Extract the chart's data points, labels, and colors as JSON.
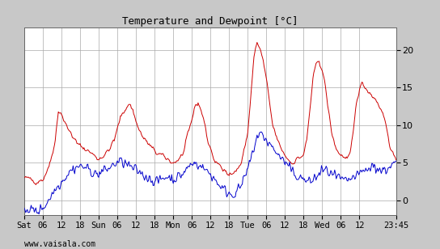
{
  "title": "Temperature and Dewpoint [°C]",
  "xlabel_bottom": "www.vaisala.com",
  "background_color": "#c8c8c8",
  "plot_background": "#ffffff",
  "grid_color": "#aaaaaa",
  "temp_color": "#cc0000",
  "dewp_color": "#0000cc",
  "ylim": [
    -2.0,
    23
  ],
  "yticks": [
    0,
    5,
    10,
    15,
    20
  ],
  "x_tick_labels": [
    "Sat",
    "06",
    "12",
    "18",
    "Sun",
    "06",
    "12",
    "18",
    "Mon",
    "06",
    "12",
    "18",
    "Tue",
    "06",
    "12",
    "18",
    "Wed",
    "06",
    "12",
    "23:45"
  ],
  "x_tick_positions": [
    0,
    6,
    12,
    18,
    24,
    30,
    36,
    42,
    48,
    54,
    60,
    66,
    72,
    78,
    84,
    90,
    96,
    102,
    108,
    119.75
  ],
  "total_hours": 119.75,
  "temp_keypoints": [
    [
      0,
      3.0
    ],
    [
      2,
      2.8
    ],
    [
      4,
      2.5
    ],
    [
      6,
      2.8
    ],
    [
      8,
      4.5
    ],
    [
      10,
      8.0
    ],
    [
      11,
      12.0
    ],
    [
      12,
      11.5
    ],
    [
      13,
      10.5
    ],
    [
      14,
      9.5
    ],
    [
      15,
      9.0
    ],
    [
      17,
      7.5
    ],
    [
      19,
      7.0
    ],
    [
      21,
      6.5
    ],
    [
      23,
      5.8
    ],
    [
      24,
      5.5
    ],
    [
      25,
      5.8
    ],
    [
      27,
      6.5
    ],
    [
      29,
      8.0
    ],
    [
      31,
      11.0
    ],
    [
      33,
      12.5
    ],
    [
      34,
      12.8
    ],
    [
      35,
      12.0
    ],
    [
      36,
      10.5
    ],
    [
      38,
      8.5
    ],
    [
      40,
      7.5
    ],
    [
      42,
      6.5
    ],
    [
      44,
      6.0
    ],
    [
      46,
      5.5
    ],
    [
      48,
      5.0
    ],
    [
      49,
      5.2
    ],
    [
      51,
      6.0
    ],
    [
      53,
      9.0
    ],
    [
      55,
      12.5
    ],
    [
      56,
      13.0
    ],
    [
      57,
      12.0
    ],
    [
      58,
      10.5
    ],
    [
      59,
      8.0
    ],
    [
      60,
      7.0
    ],
    [
      61,
      5.5
    ],
    [
      62,
      5.0
    ],
    [
      63,
      4.5
    ],
    [
      64,
      4.0
    ],
    [
      66,
      3.8
    ],
    [
      67,
      3.5
    ],
    [
      68,
      3.8
    ],
    [
      70,
      5.0
    ],
    [
      72,
      9.0
    ],
    [
      73,
      14.0
    ],
    [
      74,
      19.0
    ],
    [
      75,
      21.0
    ],
    [
      76,
      20.0
    ],
    [
      77,
      18.5
    ],
    [
      78,
      16.0
    ],
    [
      79,
      13.0
    ],
    [
      80,
      10.0
    ],
    [
      82,
      7.5
    ],
    [
      84,
      6.0
    ],
    [
      85,
      5.5
    ],
    [
      86,
      5.0
    ],
    [
      87,
      5.2
    ],
    [
      88,
      5.5
    ],
    [
      89,
      5.8
    ],
    [
      90,
      6.0
    ],
    [
      91,
      8.0
    ],
    [
      92,
      12.0
    ],
    [
      93,
      16.0
    ],
    [
      94,
      18.0
    ],
    [
      95,
      18.5
    ],
    [
      96,
      17.5
    ],
    [
      97,
      15.0
    ],
    [
      98,
      12.0
    ],
    [
      99,
      9.0
    ],
    [
      100,
      7.5
    ],
    [
      101,
      6.5
    ],
    [
      102,
      6.0
    ],
    [
      103,
      5.8
    ],
    [
      104,
      5.5
    ],
    [
      105,
      6.0
    ],
    [
      106,
      9.0
    ],
    [
      107,
      13.0
    ],
    [
      108,
      15.0
    ],
    [
      109,
      15.5
    ],
    [
      110,
      15.0
    ],
    [
      111,
      14.5
    ],
    [
      112,
      14.0
    ],
    [
      113,
      13.5
    ],
    [
      114,
      13.0
    ],
    [
      115,
      12.0
    ],
    [
      116,
      11.0
    ],
    [
      117,
      9.0
    ],
    [
      118,
      7.0
    ],
    [
      119.75,
      5.0
    ]
  ],
  "dewp_keypoints": [
    [
      0,
      -1.0
    ],
    [
      2,
      -1.2
    ],
    [
      4,
      -1.5
    ],
    [
      6,
      -1.0
    ],
    [
      7,
      -0.5
    ],
    [
      8,
      0.2
    ],
    [
      9,
      0.8
    ],
    [
      10,
      1.5
    ],
    [
      11,
      2.0
    ],
    [
      12,
      2.5
    ],
    [
      13,
      3.0
    ],
    [
      14,
      3.5
    ],
    [
      15,
      4.0
    ],
    [
      16,
      4.2
    ],
    [
      17,
      4.5
    ],
    [
      18,
      4.5
    ],
    [
      19,
      4.5
    ],
    [
      20,
      4.3
    ],
    [
      21,
      4.0
    ],
    [
      22,
      3.8
    ],
    [
      23,
      3.5
    ],
    [
      24,
      3.5
    ],
    [
      25,
      3.8
    ],
    [
      26,
      4.0
    ],
    [
      27,
      4.2
    ],
    [
      28,
      4.5
    ],
    [
      29,
      4.8
    ],
    [
      30,
      5.0
    ],
    [
      31,
      5.2
    ],
    [
      32,
      5.0
    ],
    [
      33,
      4.8
    ],
    [
      34,
      4.5
    ],
    [
      35,
      4.2
    ],
    [
      36,
      4.0
    ],
    [
      37,
      3.8
    ],
    [
      38,
      3.5
    ],
    [
      39,
      3.2
    ],
    [
      40,
      3.0
    ],
    [
      41,
      2.8
    ],
    [
      42,
      2.5
    ],
    [
      43,
      2.5
    ],
    [
      44,
      2.8
    ],
    [
      45,
      3.0
    ],
    [
      46,
      3.2
    ],
    [
      47,
      3.0
    ],
    [
      48,
      2.8
    ],
    [
      49,
      3.0
    ],
    [
      50,
      3.2
    ],
    [
      51,
      3.5
    ],
    [
      52,
      4.0
    ],
    [
      53,
      4.5
    ],
    [
      54,
      4.8
    ],
    [
      55,
      5.0
    ],
    [
      56,
      4.8
    ],
    [
      57,
      4.5
    ],
    [
      58,
      4.2
    ],
    [
      59,
      3.8
    ],
    [
      60,
      3.5
    ],
    [
      61,
      3.0
    ],
    [
      62,
      2.5
    ],
    [
      63,
      2.0
    ],
    [
      64,
      1.5
    ],
    [
      65,
      1.2
    ],
    [
      66,
      1.0
    ],
    [
      67,
      0.8
    ],
    [
      68,
      1.0
    ],
    [
      69,
      1.5
    ],
    [
      70,
      2.0
    ],
    [
      71,
      3.0
    ],
    [
      72,
      4.0
    ],
    [
      73,
      5.5
    ],
    [
      74,
      7.0
    ],
    [
      75,
      8.5
    ],
    [
      76,
      8.8
    ],
    [
      77,
      8.5
    ],
    [
      78,
      8.0
    ],
    [
      79,
      7.5
    ],
    [
      80,
      7.0
    ],
    [
      81,
      6.5
    ],
    [
      82,
      6.0
    ],
    [
      83,
      5.5
    ],
    [
      84,
      5.0
    ],
    [
      85,
      4.5
    ],
    [
      86,
      4.0
    ],
    [
      87,
      3.5
    ],
    [
      88,
      3.2
    ],
    [
      89,
      3.0
    ],
    [
      90,
      2.8
    ],
    [
      91,
      2.5
    ],
    [
      92,
      2.5
    ],
    [
      93,
      2.8
    ],
    [
      94,
      3.0
    ],
    [
      95,
      3.5
    ],
    [
      96,
      4.0
    ],
    [
      97,
      4.0
    ],
    [
      98,
      3.8
    ],
    [
      99,
      3.5
    ],
    [
      100,
      3.2
    ],
    [
      101,
      3.0
    ],
    [
      102,
      2.8
    ],
    [
      103,
      2.5
    ],
    [
      104,
      2.5
    ],
    [
      105,
      2.8
    ],
    [
      106,
      3.0
    ],
    [
      107,
      3.2
    ],
    [
      108,
      3.5
    ],
    [
      109,
      3.8
    ],
    [
      110,
      4.0
    ],
    [
      111,
      4.2
    ],
    [
      112,
      4.5
    ],
    [
      113,
      4.5
    ],
    [
      114,
      4.2
    ],
    [
      115,
      4.0
    ],
    [
      116,
      4.0
    ],
    [
      117,
      4.2
    ],
    [
      118,
      4.5
    ],
    [
      119.75,
      5.0
    ]
  ]
}
